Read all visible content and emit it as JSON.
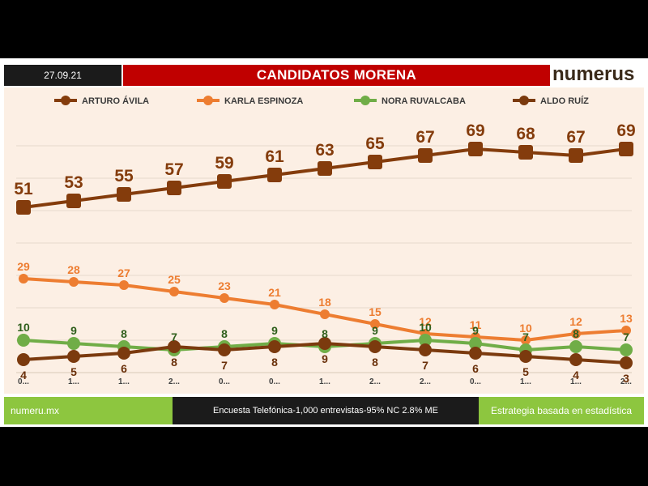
{
  "header": {
    "date": "27.09.21",
    "title": "CANDIDATOS MORENA",
    "logo": "numerus"
  },
  "footer": {
    "left": "numeru.mx",
    "middle": "Encuesta Telefónica-1,000 entrevistas-95% NC 2.8% ME",
    "right": "Estrategia basada en estadística"
  },
  "chart_data": {
    "type": "line",
    "categories": [
      "0...",
      "1...",
      "1...",
      "2...",
      "0...",
      "0...",
      "1...",
      "2...",
      "2...",
      "0...",
      "1...",
      "1...",
      "2..."
    ],
    "series": [
      {
        "name": "ARTURO ÁVILA",
        "color": "#843c0c",
        "values": [
          51,
          53,
          55,
          57,
          59,
          61,
          63,
          65,
          67,
          69,
          68,
          67,
          69
        ]
      },
      {
        "name": "KARLA ESPINOZA",
        "color": "#ed7d31",
        "values": [
          29,
          28,
          27,
          25,
          23,
          21,
          18,
          15,
          12,
          11,
          10,
          12,
          13
        ]
      },
      {
        "name": "NORA RUVALCABA",
        "color": "#70ad47",
        "values": [
          10,
          9,
          8,
          7,
          8,
          9,
          8,
          9,
          10,
          9,
          7,
          8,
          7
        ]
      },
      {
        "name": "ALDO RUÍZ",
        "color": "#7b3a0e",
        "values": [
          4,
          5,
          6,
          8,
          7,
          8,
          9,
          8,
          7,
          6,
          5,
          4,
          3
        ]
      }
    ],
    "ylim": [
      0,
      75
    ],
    "grid": true,
    "legend": "top"
  }
}
